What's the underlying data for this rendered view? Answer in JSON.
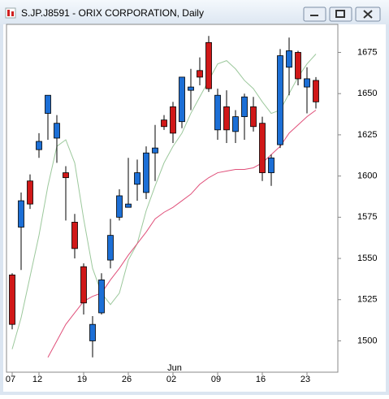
{
  "chart_data": {
    "type": "candlestick",
    "title": "S.JP.J8591 - ORIX CORPORATION, Daily",
    "categories": [
      "07",
      null,
      null,
      "12",
      null,
      null,
      null,
      null,
      "19",
      null,
      null,
      null,
      null,
      "26",
      null,
      null,
      null,
      null,
      "02",
      null,
      null,
      null,
      null,
      "09",
      null,
      null,
      null,
      null,
      "16",
      null,
      null,
      null,
      null,
      "23",
      null
    ],
    "month_label": "Jun",
    "open": [
      1540,
      1569,
      1597,
      1616,
      1638,
      1623,
      1602,
      1572,
      1545,
      1500,
      1517,
      1549,
      1575,
      1581,
      1595,
      1590,
      1614,
      1634,
      1642,
      1633,
      1652,
      1664,
      1681,
      1628,
      1642,
      1627,
      1636,
      1642,
      1632,
      1602,
      1619,
      1666,
      1675,
      1654,
      1658
    ],
    "high": [
      1541,
      1590,
      1601,
      1626,
      1649,
      1637,
      1606,
      1577,
      1547,
      1515,
      1541,
      1574,
      1592,
      1611,
      1610,
      1618,
      1631,
      1637,
      1645,
      1660,
      1665,
      1672,
      1685,
      1653,
      1652,
      1640,
      1650,
      1648,
      1636,
      1613,
      1677,
      1684,
      1676,
      1666,
      1660
    ],
    "low": [
      1507,
      1543,
      1580,
      1611,
      1622,
      1608,
      1573,
      1550,
      1516,
      1490,
      1516,
      1544,
      1573,
      1581,
      1585,
      1586,
      1597,
      1628,
      1620,
      1629,
      1640,
      1655,
      1651,
      1622,
      1620,
      1620,
      1622,
      1627,
      1597,
      1594,
      1617,
      1649,
      1655,
      1638,
      1641
    ],
    "close": [
      1510,
      1585,
      1583,
      1621,
      1649,
      1632,
      1599,
      1556,
      1523,
      1510,
      1537,
      1564,
      1588,
      1583,
      1602,
      1614,
      1617,
      1630,
      1626,
      1660,
      1654,
      1660,
      1653,
      1649,
      1628,
      1636,
      1648,
      1630,
      1602,
      1611,
      1673,
      1676,
      1659,
      1659,
      1645
    ],
    "up_color": "#1c6fd6",
    "down_color": "#d01818",
    "series": [
      {
        "color": "#9cc89c",
        "values": [
          1495,
          1514,
          1539,
          1564,
          1594,
          1618,
          1622,
          1608,
          1574,
          1544,
          1529,
          1522,
          1529,
          1549,
          1559,
          1579,
          1594,
          1608,
          1618,
          1626,
          1638,
          1648,
          1658,
          1668,
          1670,
          1665,
          1658,
          1653,
          1645,
          1638,
          1640,
          1650,
          1660,
          1668,
          1674
        ]
      },
      {
        "color": "#e0507a",
        "values": [
          null,
          null,
          null,
          null,
          1490,
          1500,
          1510,
          1517,
          1524,
          1527,
          1529,
          1537,
          1544,
          1552,
          1559,
          1566,
          1574,
          1578,
          1581,
          1585,
          1589,
          1595,
          1599,
          1602,
          1603,
          1604,
          1604,
          1605,
          1608,
          1613,
          1618,
          1626,
          1631,
          1636,
          1640
        ]
      }
    ],
    "ylim": [
      1481,
      1692
    ],
    "yticks": [
      1500,
      1525,
      1550,
      1575,
      1600,
      1625,
      1650,
      1675
    ]
  }
}
